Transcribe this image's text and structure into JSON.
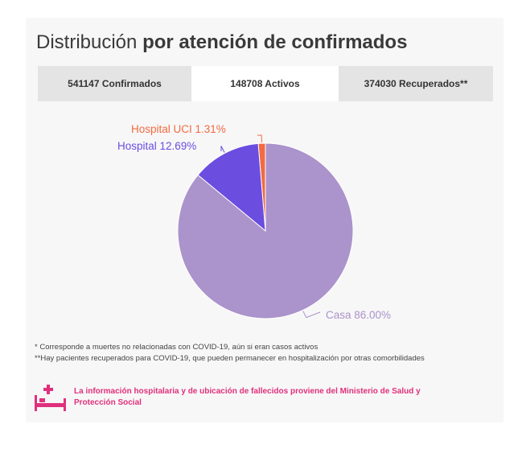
{
  "title": {
    "regular": "Distribución",
    "bold": "por atención de confirmados"
  },
  "tabs": [
    {
      "label": "541147 Confirmados",
      "active": false
    },
    {
      "label": "148708 Activos",
      "active": true
    },
    {
      "label": "374030 Recuperados**",
      "active": false
    }
  ],
  "chart_data": {
    "type": "pie",
    "slices": [
      {
        "label": "Hospital UCI",
        "value": 1.31,
        "display": "Hospital UCI 1.31%",
        "color": "#f26b42"
      },
      {
        "label": "Hospital",
        "value": 12.69,
        "display": "Hospital 12.69%",
        "color": "#6b4de0"
      },
      {
        "label": "Casa",
        "value": 86.0,
        "display": "Casa 86.00%",
        "color": "#ab93cb"
      }
    ]
  },
  "notes": [
    "* Corresponde a muertes no relacionadas con COVID-19, aún si eran casos activos",
    "**Hay pacientes recuperados para COVID-19, que pueden permanecer en hospitalización por otras comorbilidades"
  ],
  "source": {
    "text": "La información hospitalaria y de ubicación de fallecidos proviene del Ministerio de Salud y Protección Social",
    "icon": "hospital-bed-icon",
    "color": "#e0307d"
  }
}
